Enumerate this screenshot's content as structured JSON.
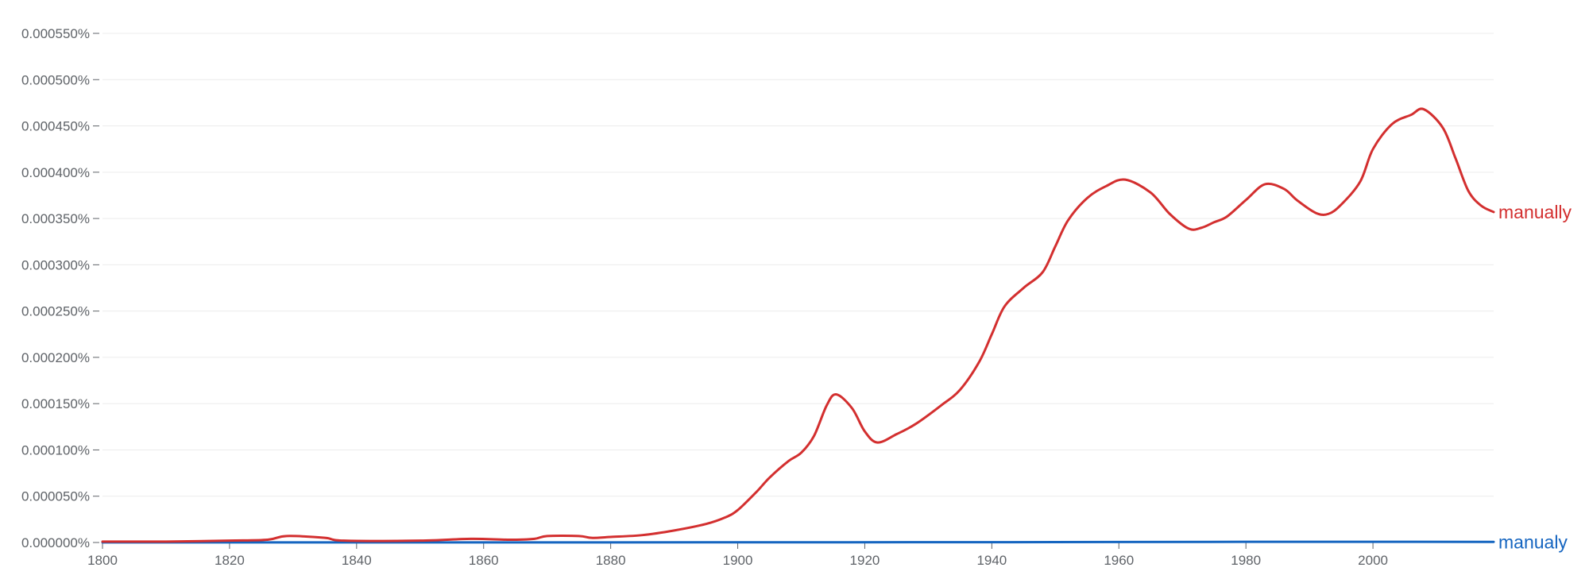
{
  "chart_data": {
    "type": "line",
    "title": "",
    "xlabel": "",
    "ylabel": "",
    "xlim": [
      1800,
      2019
    ],
    "ylim": [
      0,
      0.00055
    ],
    "grid": true,
    "legend": "inline-right",
    "x_ticks": [
      1800,
      1820,
      1840,
      1860,
      1880,
      1900,
      1920,
      1940,
      1960,
      1980,
      2000
    ],
    "x_tick_labels": [
      "1800",
      "1820",
      "1840",
      "1860",
      "1880",
      "1900",
      "1920",
      "1940",
      "1960",
      "1980",
      "2000"
    ],
    "y_ticks": [
      0,
      5e-05,
      0.0001,
      0.00015,
      0.0002,
      0.00025,
      0.0003,
      0.00035,
      0.0004,
      0.00045,
      0.0005,
      0.00055
    ],
    "y_tick_labels": [
      "0.000000%",
      "0.000050%",
      "0.000100%",
      "0.000150%",
      "0.000200%",
      "0.000250%",
      "0.000300%",
      "0.000350%",
      "0.000400%",
      "0.000450%",
      "0.000500%",
      "0.000550%"
    ],
    "series": [
      {
        "name": "manually",
        "color": "#d32f2f",
        "points": [
          [
            1800,
            1e-06
          ],
          [
            1810,
            1e-06
          ],
          [
            1820,
            2e-06
          ],
          [
            1826,
            3e-06
          ],
          [
            1829,
            7e-06
          ],
          [
            1835,
            5e-06
          ],
          [
            1838,
            2e-06
          ],
          [
            1850,
            2e-06
          ],
          [
            1858,
            4e-06
          ],
          [
            1864,
            3e-06
          ],
          [
            1868,
            4e-06
          ],
          [
            1870,
            7e-06
          ],
          [
            1875,
            7e-06
          ],
          [
            1877,
            5e-06
          ],
          [
            1880,
            6e-06
          ],
          [
            1885,
            8e-06
          ],
          [
            1890,
            1.3e-05
          ],
          [
            1895,
            2e-05
          ],
          [
            1898,
            2.7e-05
          ],
          [
            1900,
            3.5e-05
          ],
          [
            1903,
            5.5e-05
          ],
          [
            1905,
            7e-05
          ],
          [
            1908,
            8.8e-05
          ],
          [
            1910,
            9.7e-05
          ],
          [
            1912,
            0.000115
          ],
          [
            1914,
            0.000148
          ],
          [
            1915.5,
            0.00016
          ],
          [
            1918,
            0.000145
          ],
          [
            1920,
            0.00012
          ],
          [
            1922,
            0.000108
          ],
          [
            1925,
            0.000117
          ],
          [
            1928,
            0.000128
          ],
          [
            1932,
            0.000148
          ],
          [
            1935,
            0.000165
          ],
          [
            1938,
            0.000195
          ],
          [
            1940,
            0.000225
          ],
          [
            1942,
            0.000255
          ],
          [
            1945,
            0.000275
          ],
          [
            1948,
            0.000292
          ],
          [
            1950,
            0.00032
          ],
          [
            1952,
            0.000348
          ],
          [
            1955,
            0.000372
          ],
          [
            1958,
            0.000385
          ],
          [
            1961,
            0.000392
          ],
          [
            1965,
            0.000378
          ],
          [
            1968,
            0.000355
          ],
          [
            1971,
            0.000339
          ],
          [
            1973,
            0.00034
          ],
          [
            1975,
            0.000346
          ],
          [
            1977,
            0.000352
          ],
          [
            1980,
            0.00037
          ],
          [
            1983,
            0.000387
          ],
          [
            1986,
            0.000382
          ],
          [
            1988,
            0.00037
          ],
          [
            1991,
            0.000356
          ],
          [
            1993,
            0.000355
          ],
          [
            1995,
            0.000365
          ],
          [
            1998,
            0.00039
          ],
          [
            2000,
            0.000425
          ],
          [
            2003,
            0.000452
          ],
          [
            2006,
            0.000462
          ],
          [
            2008,
            0.000468
          ],
          [
            2011,
            0.000448
          ],
          [
            2013,
            0.000415
          ],
          [
            2015,
            0.00038
          ],
          [
            2017,
            0.000364
          ],
          [
            2019,
            0.000357
          ]
        ]
      },
      {
        "name": "manualy",
        "color": "#1565c0",
        "points": [
          [
            1800,
            1e-07
          ],
          [
            1850,
            1e-07
          ],
          [
            1900,
            2e-07
          ],
          [
            1950,
            4e-07
          ],
          [
            1980,
            7e-07
          ],
          [
            2000,
            8e-07
          ],
          [
            2019,
            6e-07
          ]
        ]
      }
    ]
  }
}
